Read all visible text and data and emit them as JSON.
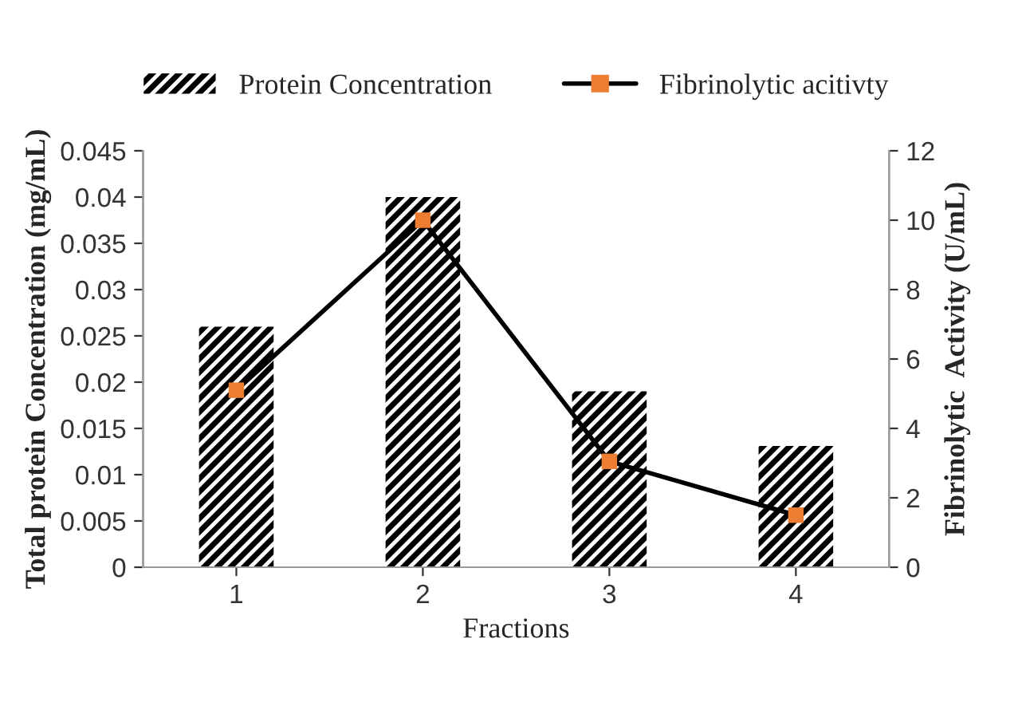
{
  "chart_data": {
    "type": "bar",
    "xlabel": "Fractions",
    "ylabel": "Total protein Concentration (mg/mL)",
    "y2label": "Fibrinolytic  Activity (U/mL)",
    "categories": [
      "1",
      "2",
      "3",
      "4"
    ],
    "series": [
      {
        "name": "Protein Concentration",
        "color": "#000000",
        "values": [
          0.026,
          0.04,
          0.019,
          0.0131
        ]
      },
      {
        "name": "Fibrinolytic acitivty",
        "type": "line",
        "axis": "y2",
        "color": "#000000",
        "colors": [
          "#ed7d31",
          "#ed7d31",
          "#ed7d31",
          "#ed7d31"
        ],
        "values": [
          5.1,
          10.0,
          3.05,
          1.5
        ]
      }
    ],
    "ylim": [
      0,
      0.045
    ],
    "yticks": [
      0,
      0.005,
      0.01,
      0.015,
      0.02,
      0.025,
      0.03,
      0.035,
      0.04,
      0.045
    ],
    "y2lim": [
      0,
      12
    ],
    "y2ticks": [
      0,
      2,
      4,
      6,
      8,
      10,
      12
    ],
    "marker": "square",
    "line_style": "solid",
    "legend": "top",
    "grid": false
  }
}
